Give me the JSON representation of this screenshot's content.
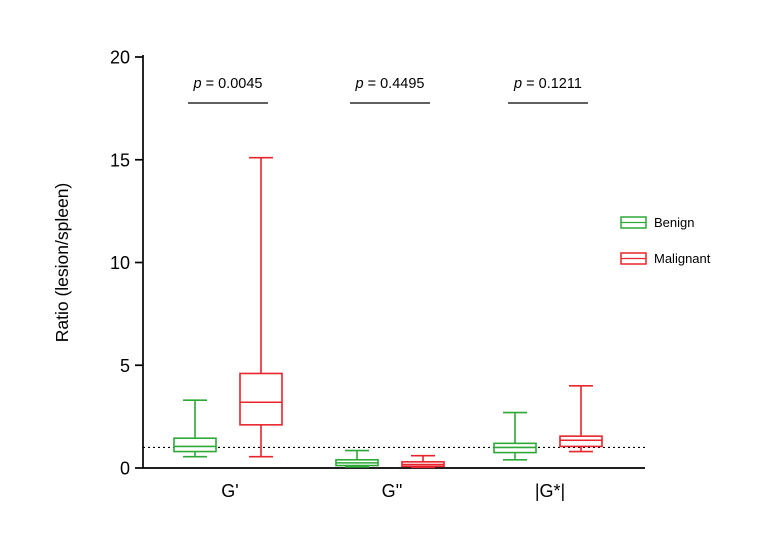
{
  "figure": {
    "background": "#ffffff"
  },
  "chart_data": {
    "type": "boxplot",
    "title": "",
    "ylabel": "Ratio (lesion/spleen)",
    "xlabel": "",
    "ylim": [
      0,
      20
    ],
    "yticks": [
      0,
      5,
      10,
      15,
      20
    ],
    "categories": [
      "G'",
      "G''",
      "|G*|"
    ],
    "grid": false,
    "reference_line": {
      "y": 1,
      "style": "dotted",
      "color": "#000000"
    },
    "series": [
      {
        "name": "Benign",
        "color": "#2EA938",
        "boxes": [
          {
            "category": "G'",
            "min": 0.55,
            "q1": 0.8,
            "median": 1.05,
            "q3": 1.45,
            "max": 3.3
          },
          {
            "category": "G''",
            "min": 0.05,
            "q1": 0.12,
            "median": 0.25,
            "q3": 0.4,
            "max": 0.85
          },
          {
            "category": "|G*|",
            "min": 0.4,
            "q1": 0.75,
            "median": 1.0,
            "q3": 1.2,
            "max": 2.7
          }
        ]
      },
      {
        "name": "Malignant",
        "color": "#E8242C",
        "boxes": [
          {
            "category": "G'",
            "min": 0.55,
            "q1": 2.1,
            "median": 3.2,
            "q3": 4.6,
            "max": 15.1
          },
          {
            "category": "G''",
            "min": 0.03,
            "q1": 0.08,
            "median": 0.17,
            "q3": 0.3,
            "max": 0.6
          },
          {
            "category": "|G*|",
            "min": 0.8,
            "q1": 1.05,
            "median": 1.35,
            "q3": 1.55,
            "max": 4.0
          }
        ]
      }
    ],
    "annotations": [
      {
        "label": "p = 0.0045",
        "category_index": 0
      },
      {
        "label": "p = 0.4495",
        "category_index": 1
      },
      {
        "label": "p = 0.1211",
        "category_index": 2
      }
    ],
    "legend": {
      "position": "right",
      "items": [
        {
          "label": "Benign",
          "color": "#2EA938"
        },
        {
          "label": "Malignant",
          "color": "#E8242C"
        }
      ]
    }
  }
}
